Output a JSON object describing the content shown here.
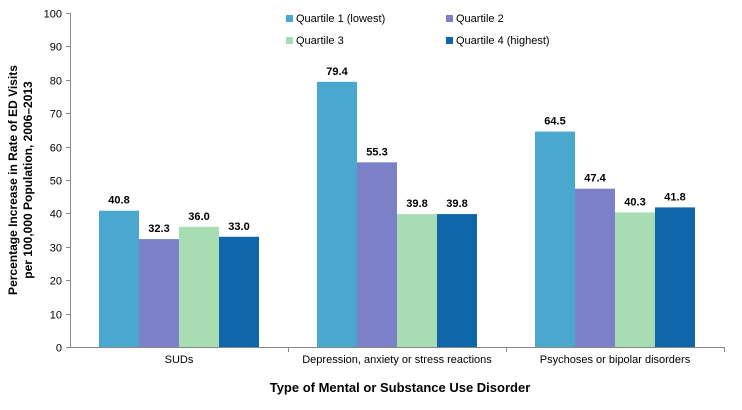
{
  "chart_data": {
    "type": "bar",
    "title": "",
    "xlabel": "Type of Mental or Substance Use Disorder",
    "ylabel_lines": [
      "Percentage Increase in Rate of ED Visits",
      "per 100,000 Population, 2006–2013"
    ],
    "ylim": [
      0,
      100
    ],
    "yticks": [
      0,
      10,
      20,
      30,
      40,
      50,
      60,
      70,
      80,
      90,
      100
    ],
    "grid": false,
    "legend_position": "top",
    "categories": [
      "SUDs",
      "Depression, anxiety or stress reactions",
      "Psychoses or bipolar disorders"
    ],
    "series": [
      {
        "name": "Quartile 1 (lowest)",
        "color": "#4AA8CE",
        "values": [
          40.8,
          79.4,
          64.5
        ]
      },
      {
        "name": "Quartile 2",
        "color": "#7C80C8",
        "values": [
          32.3,
          55.3,
          47.4
        ]
      },
      {
        "name": "Quartile 3",
        "color": "#A8DDB4",
        "values": [
          36.0,
          39.8,
          40.3
        ]
      },
      {
        "name": "Quartile 4 (highest)",
        "color": "#0F66A8",
        "values": [
          33.0,
          39.8,
          41.8
        ]
      }
    ]
  }
}
